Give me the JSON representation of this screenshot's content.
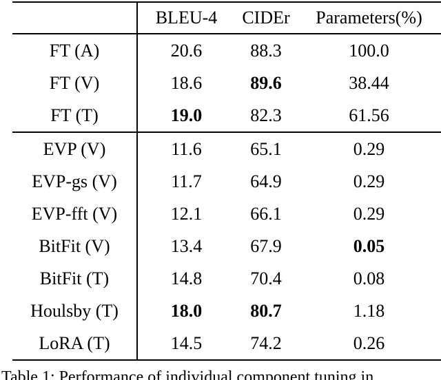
{
  "table": {
    "columns": [
      "BLEU-4",
      "CIDEr",
      "Parameters(%)"
    ],
    "rows": [
      {
        "label": "FT (A)",
        "bleu4": "20.6",
        "cider": "88.3",
        "params": "100.0"
      },
      {
        "label": "FT (V)",
        "bleu4": "18.6",
        "cider": "89.6",
        "params": "38.44"
      },
      {
        "label": "FT (T)",
        "bleu4": "19.0",
        "cider": "82.3",
        "params": "61.56"
      },
      {
        "label": "EVP (V)",
        "bleu4": "11.6",
        "cider": "65.1",
        "params": "0.29"
      },
      {
        "label": "EVP-gs (V)",
        "bleu4": "11.7",
        "cider": "64.9",
        "params": "0.29"
      },
      {
        "label": "EVP-fft (V)",
        "bleu4": "12.1",
        "cider": "66.1",
        "params": "0.29"
      },
      {
        "label": "BitFit (V)",
        "bleu4": "13.4",
        "cider": "67.9",
        "params": "0.05"
      },
      {
        "label": "BitFit (T)",
        "bleu4": "14.8",
        "cider": "70.4",
        "params": "0.08"
      },
      {
        "label": "Houlsby (T)",
        "bleu4": "18.0",
        "cider": "80.7",
        "params": "1.18"
      },
      {
        "label": "LoRA (T)",
        "bleu4": "14.5",
        "cider": "74.2",
        "params": "0.26"
      }
    ]
  },
  "caption": "Table 1: Performance of individual component tuning in"
}
